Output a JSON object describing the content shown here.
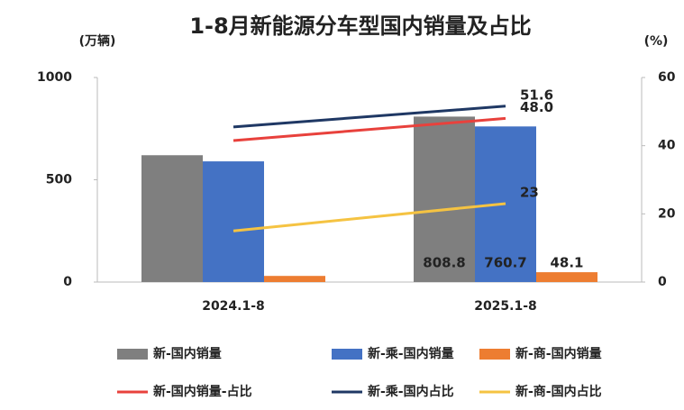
{
  "chart_data": {
    "type": "bar_line",
    "title": "1-8月新能源分车型国内销量及占比",
    "y_label": "(万辆)",
    "y2_label": "(%)",
    "categories": [
      "2024.1-8",
      "2025.1-8"
    ],
    "ylim": [
      0,
      1000
    ],
    "yticks": [
      0,
      500,
      1000
    ],
    "y2lim": [
      0,
      60
    ],
    "y2ticks": [
      0,
      20,
      40,
      60
    ],
    "series": [
      {
        "name": "新-国内销量",
        "kind": "bar",
        "color": "#7f7f7f",
        "values": [
          620,
          808.8
        ],
        "value_labels": [
          null,
          "808.8"
        ]
      },
      {
        "name": "新-乘-国内销量",
        "kind": "bar",
        "color": "#4472c4",
        "values": [
          590,
          760.7
        ],
        "value_labels": [
          null,
          "760.7"
        ]
      },
      {
        "name": "新-商-国内销量",
        "kind": "bar",
        "color": "#ed7d31",
        "values": [
          30,
          48.1
        ],
        "value_labels": [
          null,
          "48.1"
        ]
      },
      {
        "name": "新-国内销量-占比",
        "kind": "line",
        "axis": "y2",
        "color": "#e8413c",
        "values": [
          41.5,
          48.0
        ],
        "value_labels": [
          null,
          "48.0"
        ]
      },
      {
        "name": "新-乘-国内占比",
        "kind": "line",
        "axis": "y2",
        "color": "#1f3864",
        "values": [
          45.5,
          51.6
        ],
        "value_labels": [
          null,
          "51.6"
        ]
      },
      {
        "name": "新-商-国内占比",
        "kind": "line",
        "axis": "y2",
        "color": "#f5c342",
        "values": [
          15,
          23
        ],
        "value_labels": [
          null,
          "23"
        ]
      }
    ]
  }
}
